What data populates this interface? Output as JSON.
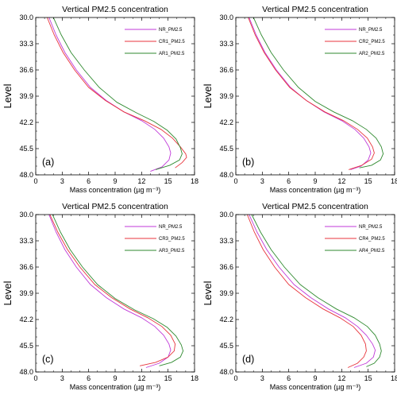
{
  "chart_data": [
    {
      "type": "line",
      "title": "Vertical PM2.5 concentration",
      "xlabel": "Mass concentration (µg m⁻³)",
      "ylabel": "Level",
      "xlim": [
        0,
        18
      ],
      "ylim": [
        30,
        48
      ],
      "y_inverted": true,
      "xticks": [
        "0",
        "3",
        "6",
        "9",
        "12",
        "15",
        "18"
      ],
      "yticks": [
        "30.0",
        "33.3",
        "36.6",
        "39.9",
        "42.2",
        "45.5",
        "48.0"
      ],
      "panel_label": "(a)",
      "legend_position": "top-right",
      "series": [
        {
          "name": "NR_PM2.5",
          "color": "#c03ad8",
          "points": [
            [
              1.5,
              30
            ],
            [
              2.3,
              32
            ],
            [
              3.3,
              34
            ],
            [
              4.6,
              36
            ],
            [
              6.2,
              38
            ],
            [
              8.0,
              39.5
            ],
            [
              10.0,
              40.8
            ],
            [
              12.0,
              41.8
            ],
            [
              13.5,
              42.8
            ],
            [
              14.5,
              43.8
            ],
            [
              15.1,
              44.8
            ],
            [
              15.3,
              45.5
            ],
            [
              15.1,
              46.3
            ],
            [
              14.3,
              47.1
            ],
            [
              13.0,
              47.6
            ]
          ]
        },
        {
          "name": "CR1_PM2.5",
          "color": "#e8353c",
          "points": [
            [
              1.3,
              30
            ],
            [
              2.1,
              32
            ],
            [
              3.1,
              34
            ],
            [
              4.4,
              36
            ],
            [
              6.0,
              38
            ],
            [
              7.9,
              39.5
            ],
            [
              10.0,
              40.8
            ],
            [
              12.3,
              41.8
            ],
            [
              14.2,
              42.8
            ],
            [
              15.5,
              43.8
            ],
            [
              16.4,
              44.8
            ],
            [
              17.0,
              45.6
            ],
            [
              17.1,
              46.0
            ],
            [
              16.6,
              46.6
            ],
            [
              15.8,
              47.2
            ]
          ]
        },
        {
          "name": "AR1_PM2.5",
          "color": "#2f8a2f",
          "points": [
            [
              2.0,
              30
            ],
            [
              2.9,
              32
            ],
            [
              4.0,
              34
            ],
            [
              5.5,
              36
            ],
            [
              7.2,
              38
            ],
            [
              9.2,
              39.7
            ],
            [
              11.4,
              40.9
            ],
            [
              13.4,
              41.9
            ],
            [
              14.9,
              42.9
            ],
            [
              15.9,
              43.9
            ],
            [
              16.4,
              44.9
            ],
            [
              16.6,
              45.6
            ],
            [
              16.3,
              46.3
            ],
            [
              15.2,
              46.9
            ],
            [
              13.6,
              47.4
            ]
          ]
        }
      ]
    },
    {
      "type": "line",
      "title": "Vertical PM2.5 concentration",
      "xlabel": "Mass concentration (µg m⁻³)",
      "ylabel": "Level",
      "xlim": [
        0,
        18
      ],
      "ylim": [
        30,
        48
      ],
      "y_inverted": true,
      "xticks": [
        "0",
        "3",
        "6",
        "9",
        "12",
        "15",
        "18"
      ],
      "yticks": [
        "30.0",
        "33.3",
        "36.6",
        "39.9",
        "42.2",
        "45.5",
        "48.0"
      ],
      "panel_label": "(b)",
      "legend_position": "top-right",
      "series": [
        {
          "name": "NR_PM2.5",
          "color": "#c03ad8",
          "points": [
            [
              1.5,
              30
            ],
            [
              2.3,
              32
            ],
            [
              3.3,
              34
            ],
            [
              4.6,
              36
            ],
            [
              6.2,
              38
            ],
            [
              8.0,
              39.5
            ],
            [
              10.0,
              40.8
            ],
            [
              12.0,
              41.8
            ],
            [
              13.5,
              42.8
            ],
            [
              14.5,
              43.8
            ],
            [
              15.1,
              44.8
            ],
            [
              15.3,
              45.5
            ],
            [
              15.0,
              46.3
            ],
            [
              14.2,
              47.0
            ],
            [
              13.0,
              47.4
            ]
          ]
        },
        {
          "name": "CR2_PM2.5",
          "color": "#e8353c",
          "points": [
            [
              1.4,
              30
            ],
            [
              2.2,
              32
            ],
            [
              3.2,
              34
            ],
            [
              4.5,
              36
            ],
            [
              6.1,
              38
            ],
            [
              8.0,
              39.5
            ],
            [
              10.1,
              40.8
            ],
            [
              12.2,
              41.8
            ],
            [
              13.8,
              42.8
            ],
            [
              14.9,
              43.8
            ],
            [
              15.5,
              44.8
            ],
            [
              15.7,
              45.5
            ],
            [
              15.4,
              46.2
            ],
            [
              14.3,
              46.9
            ],
            [
              12.8,
              47.4
            ]
          ]
        },
        {
          "name": "AR2_PM2.5",
          "color": "#2f8a2f",
          "points": [
            [
              2.0,
              30
            ],
            [
              2.9,
              32
            ],
            [
              4.0,
              34
            ],
            [
              5.4,
              36
            ],
            [
              7.1,
              38
            ],
            [
              9.0,
              39.6
            ],
            [
              11.1,
              40.8
            ],
            [
              13.2,
              41.8
            ],
            [
              14.8,
              42.8
            ],
            [
              15.9,
              43.8
            ],
            [
              16.5,
              44.8
            ],
            [
              16.7,
              45.6
            ],
            [
              16.4,
              46.3
            ],
            [
              15.4,
              46.9
            ],
            [
              14.0,
              47.2
            ]
          ]
        }
      ]
    },
    {
      "type": "line",
      "title": "Vertical PM2.5 concentration",
      "xlabel": "Mass concentration (µg m⁻³)",
      "ylabel": "Level",
      "xlim": [
        0,
        18
      ],
      "ylim": [
        30,
        48
      ],
      "y_inverted": true,
      "xticks": [
        "0",
        "3",
        "6",
        "9",
        "12",
        "15",
        "18"
      ],
      "yticks": [
        "30.0",
        "33.3",
        "36.6",
        "39.9",
        "42.2",
        "45.5",
        "48.0"
      ],
      "panel_label": "(c)",
      "legend_position": "top-right",
      "series": [
        {
          "name": "NR_PM2.5",
          "color": "#c03ad8",
          "points": [
            [
              1.5,
              30
            ],
            [
              2.3,
              32
            ],
            [
              3.3,
              34
            ],
            [
              4.6,
              36
            ],
            [
              6.2,
              38
            ],
            [
              8.0,
              39.5
            ],
            [
              10.0,
              40.8
            ],
            [
              12.0,
              41.8
            ],
            [
              13.5,
              42.8
            ],
            [
              14.5,
              43.8
            ],
            [
              15.1,
              44.8
            ],
            [
              15.3,
              45.5
            ],
            [
              15.0,
              46.3
            ],
            [
              14.0,
              47.0
            ],
            [
              12.5,
              47.5
            ]
          ]
        },
        {
          "name": "CR3_PM2.5",
          "color": "#e8353c",
          "points": [
            [
              1.6,
              30
            ],
            [
              2.5,
              32
            ],
            [
              3.6,
              34
            ],
            [
              5.0,
              36
            ],
            [
              6.7,
              38
            ],
            [
              8.6,
              39.5
            ],
            [
              10.7,
              40.8
            ],
            [
              12.7,
              41.8
            ],
            [
              14.3,
              42.8
            ],
            [
              15.3,
              43.8
            ],
            [
              15.8,
              44.8
            ],
            [
              15.7,
              45.6
            ],
            [
              15.0,
              46.3
            ],
            [
              13.6,
              46.9
            ],
            [
              11.8,
              47.3
            ]
          ]
        },
        {
          "name": "AR3_PM2.5",
          "color": "#2f8a2f",
          "points": [
            [
              1.9,
              30
            ],
            [
              2.8,
              32
            ],
            [
              3.9,
              34
            ],
            [
              5.3,
              36
            ],
            [
              7.0,
              38
            ],
            [
              9.0,
              39.6
            ],
            [
              11.2,
              40.9
            ],
            [
              13.3,
              41.9
            ],
            [
              14.9,
              42.9
            ],
            [
              15.9,
              43.9
            ],
            [
              16.5,
              44.9
            ],
            [
              16.7,
              45.6
            ],
            [
              16.4,
              46.3
            ],
            [
              15.4,
              46.9
            ],
            [
              14.0,
              47.3
            ]
          ]
        }
      ]
    },
    {
      "type": "line",
      "title": "Vertical PM2.5 concentration",
      "xlabel": "Mass concentration (µg m⁻³)",
      "ylabel": "Level",
      "xlim": [
        0,
        18
      ],
      "ylim": [
        30,
        48
      ],
      "y_inverted": true,
      "xticks": [
        "0",
        "3",
        "6",
        "9",
        "12",
        "15",
        "18"
      ],
      "yticks": [
        "30.0",
        "33.3",
        "36.6",
        "39.9",
        "42.2",
        "45.5",
        "48.0"
      ],
      "panel_label": "(d)",
      "legend_position": "top-right",
      "series": [
        {
          "name": "NR_PM2.5",
          "color": "#c03ad8",
          "points": [
            [
              1.5,
              30
            ],
            [
              2.4,
              32
            ],
            [
              3.5,
              34
            ],
            [
              4.9,
              36
            ],
            [
              6.6,
              38
            ],
            [
              8.5,
              39.5
            ],
            [
              10.5,
              40.8
            ],
            [
              12.4,
              41.8
            ],
            [
              13.8,
              42.8
            ],
            [
              14.8,
              43.8
            ],
            [
              15.5,
              44.8
            ],
            [
              15.8,
              45.5
            ],
            [
              15.6,
              46.3
            ],
            [
              14.8,
              47.0
            ],
            [
              13.4,
              47.5
            ]
          ]
        },
        {
          "name": "CR4_PM2.5",
          "color": "#e8353c",
          "points": [
            [
              1.3,
              30
            ],
            [
              2.1,
              32
            ],
            [
              3.1,
              34
            ],
            [
              4.4,
              36
            ],
            [
              6.0,
              38
            ],
            [
              7.9,
              39.5
            ],
            [
              9.9,
              40.8
            ],
            [
              11.8,
              41.8
            ],
            [
              13.3,
              42.8
            ],
            [
              14.2,
              43.8
            ],
            [
              14.7,
              44.8
            ],
            [
              14.8,
              45.6
            ],
            [
              14.5,
              46.3
            ],
            [
              13.8,
              47.0
            ],
            [
              12.7,
              47.5
            ]
          ]
        },
        {
          "name": "AR4_PM2.5",
          "color": "#2f8a2f",
          "points": [
            [
              1.8,
              30
            ],
            [
              2.8,
              32
            ],
            [
              4.0,
              34
            ],
            [
              5.5,
              36
            ],
            [
              7.3,
              38
            ],
            [
              9.3,
              39.5
            ],
            [
              11.4,
              40.8
            ],
            [
              13.4,
              41.8
            ],
            [
              14.9,
              42.8
            ],
            [
              15.8,
              43.8
            ],
            [
              16.3,
              44.8
            ],
            [
              16.5,
              45.6
            ],
            [
              16.3,
              46.3
            ],
            [
              15.7,
              47.0
            ],
            [
              14.8,
              47.4
            ]
          ]
        }
      ]
    }
  ]
}
